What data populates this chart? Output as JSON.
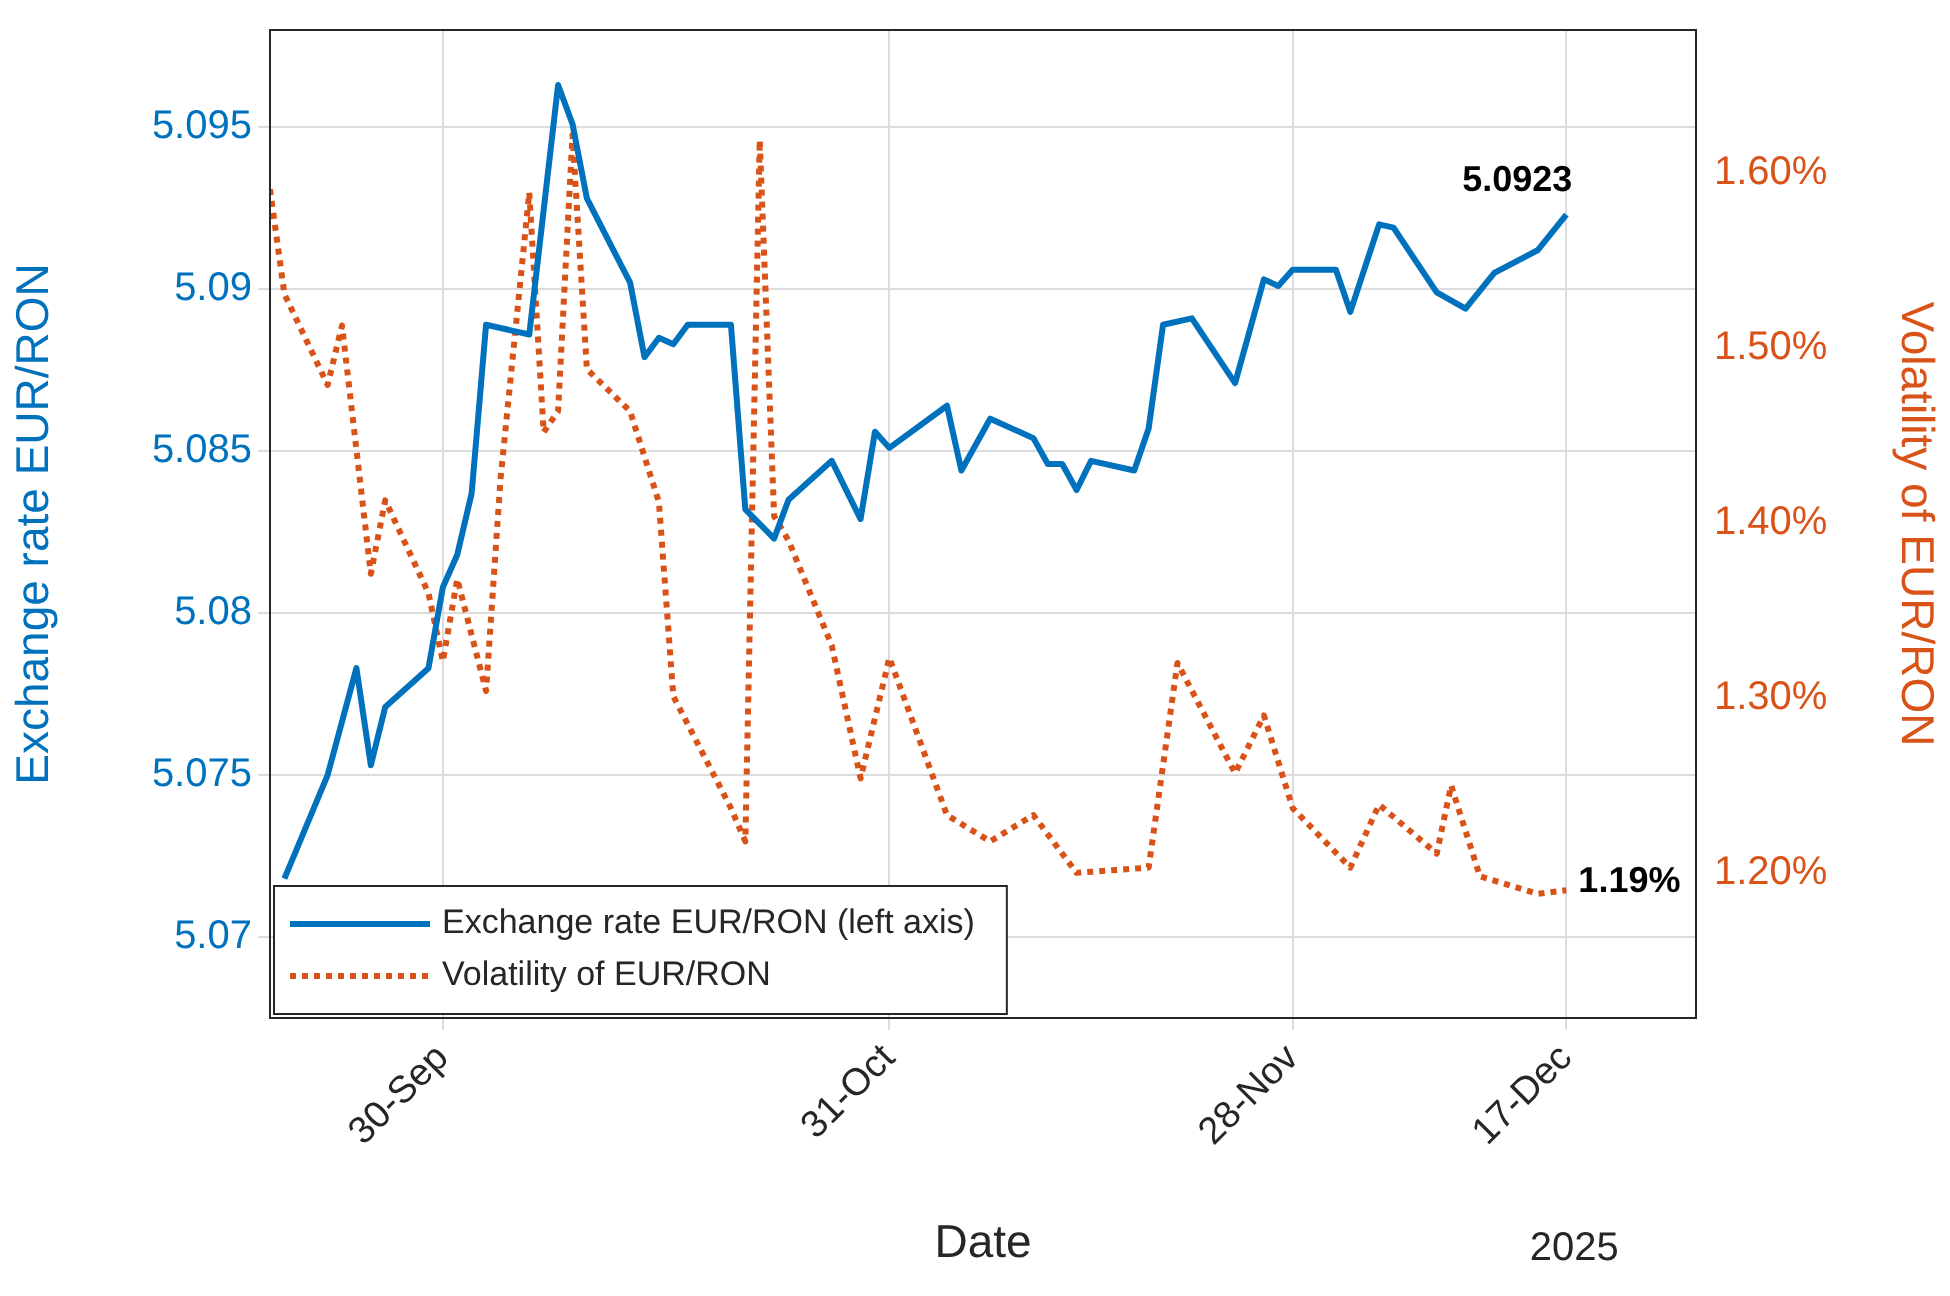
{
  "chart_data": {
    "type": "line",
    "xlabel": "Date",
    "ylabel": "Exchange rate EUR/RON",
    "y2label": "Volatility of EUR/RON",
    "xlim": [
      "2025-09-18",
      "2025-12-26"
    ],
    "xticks": [
      {
        "value": "2025-09-30",
        "label": "30-Sep"
      },
      {
        "value": "2025-10-31",
        "label": "31-Oct"
      },
      {
        "value": "2025-11-28",
        "label": "28-Nov"
      },
      {
        "value": "2025-12-17",
        "label": "17-Dec"
      }
    ],
    "ylim": [
      5.0675,
      5.098
    ],
    "yticks": [
      5.07,
      5.075,
      5.08,
      5.085,
      5.09,
      5.095
    ],
    "y2lim": [
      1.117,
      1.682
    ],
    "y2ticks": [
      {
        "value": 1.2,
        "label": "1.20%"
      },
      {
        "value": 1.3,
        "label": "1.30%"
      },
      {
        "value": 1.4,
        "label": "1.40%"
      },
      {
        "value": 1.5,
        "label": "1.50%"
      },
      {
        "value": 1.6,
        "label": "1.60%"
      }
    ],
    "grid": true,
    "legend": "bottom left",
    "annotations": [
      "2025"
    ],
    "series": [
      {
        "name": "Exchange rate EUR/RON (left axis)",
        "color": "#0072bd",
        "line_style": "solid",
        "x": [
          "2025-09-19",
          "2025-09-22",
          "2025-09-24",
          "2025-09-25",
          "2025-09-26",
          "2025-09-29",
          "2025-09-30",
          "2025-10-01",
          "2025-10-02",
          "2025-10-03",
          "2025-10-06",
          "2025-10-08",
          "2025-10-09",
          "2025-10-10",
          "2025-10-13",
          "2025-10-14",
          "2025-10-15",
          "2025-10-16",
          "2025-10-17",
          "2025-10-20",
          "2025-10-21",
          "2025-10-23",
          "2025-10-24",
          "2025-10-27",
          "2025-10-29",
          "2025-10-30",
          "2025-10-31",
          "2025-11-04",
          "2025-11-05",
          "2025-11-07",
          "2025-11-10",
          "2025-11-11",
          "2025-11-12",
          "2025-11-13",
          "2025-11-14",
          "2025-11-17",
          "2025-11-18",
          "2025-11-19",
          "2025-11-21",
          "2025-11-24",
          "2025-11-26",
          "2025-11-27",
          "2025-11-28",
          "2025-12-01",
          "2025-12-02",
          "2025-12-04",
          "2025-12-05",
          "2025-12-08",
          "2025-12-10",
          "2025-12-12",
          "2025-12-15",
          "2025-12-17"
        ],
        "values": [
          5.0718,
          5.075,
          5.0783,
          5.0753,
          5.0771,
          5.0783,
          5.0808,
          5.0818,
          5.0837,
          5.0889,
          5.0886,
          5.0963,
          5.0951,
          5.0928,
          5.0902,
          5.0879,
          5.0885,
          5.0883,
          5.0889,
          5.0889,
          5.0832,
          5.0823,
          5.0835,
          5.0847,
          5.0829,
          5.0856,
          5.0851,
          5.0864,
          5.0844,
          5.086,
          5.0854,
          5.0846,
          5.0846,
          5.0838,
          5.0847,
          5.0844,
          5.0857,
          5.0889,
          5.0891,
          5.0871,
          5.0903,
          5.0901,
          5.0906,
          5.0906,
          5.0893,
          5.092,
          5.0919,
          5.0899,
          5.0894,
          5.0905,
          5.0912,
          5.0923
        ],
        "value_labels": [
          null,
          null,
          null,
          null,
          null,
          null,
          null,
          null,
          null,
          null,
          null,
          null,
          null,
          null,
          null,
          null,
          null,
          null,
          null,
          null,
          null,
          null,
          null,
          null,
          null,
          null,
          null,
          null,
          null,
          null,
          null,
          null,
          null,
          null,
          null,
          null,
          null,
          null,
          null,
          null,
          null,
          null,
          null,
          null,
          null,
          null,
          null,
          null,
          null,
          null,
          null,
          "5.0923"
        ]
      },
      {
        "name": "Volatility of EUR/RON",
        "color": "#d95319",
        "line_style": "dotted",
        "axis": "y2",
        "x": [
          "2025-09-18",
          "2025-09-19",
          "2025-09-22",
          "2025-09-23",
          "2025-09-25",
          "2025-09-26",
          "2025-09-29",
          "2025-09-30",
          "2025-10-01",
          "2025-10-03",
          "2025-10-04",
          "2025-10-06",
          "2025-10-07",
          "2025-10-08",
          "2025-10-09",
          "2025-10-10",
          "2025-10-13",
          "2025-10-15",
          "2025-10-16",
          "2025-10-20",
          "2025-10-21",
          "2025-10-22",
          "2025-10-23",
          "2025-10-24",
          "2025-10-27",
          "2025-10-29",
          "2025-10-31",
          "2025-11-04",
          "2025-11-07",
          "2025-11-10",
          "2025-11-13",
          "2025-11-18",
          "2025-11-20",
          "2025-11-24",
          "2025-11-26",
          "2025-11-28",
          "2025-12-02",
          "2025-12-04",
          "2025-12-08",
          "2025-12-09",
          "2025-12-11",
          "2025-12-15",
          "2025-12-17"
        ],
        "values": [
          1.591,
          1.531,
          1.479,
          1.513,
          1.371,
          1.413,
          1.36,
          1.321,
          1.368,
          1.304,
          1.425,
          1.589,
          1.452,
          1.464,
          1.622,
          1.488,
          1.464,
          1.412,
          1.301,
          1.237,
          1.218,
          1.619,
          1.404,
          1.39,
          1.33,
          1.254,
          1.323,
          1.233,
          1.218,
          1.233,
          1.2,
          1.203,
          1.32,
          1.257,
          1.29,
          1.237,
          1.203,
          1.239,
          1.211,
          1.25,
          1.198,
          1.188,
          1.19
        ],
        "value_labels": [
          null,
          null,
          null,
          null,
          null,
          null,
          null,
          null,
          null,
          null,
          null,
          null,
          null,
          null,
          null,
          null,
          null,
          null,
          null,
          null,
          null,
          null,
          null,
          null,
          null,
          null,
          null,
          null,
          null,
          null,
          null,
          null,
          null,
          null,
          null,
          null,
          null,
          null,
          null,
          null,
          null,
          null,
          "1.19%"
        ]
      }
    ]
  }
}
